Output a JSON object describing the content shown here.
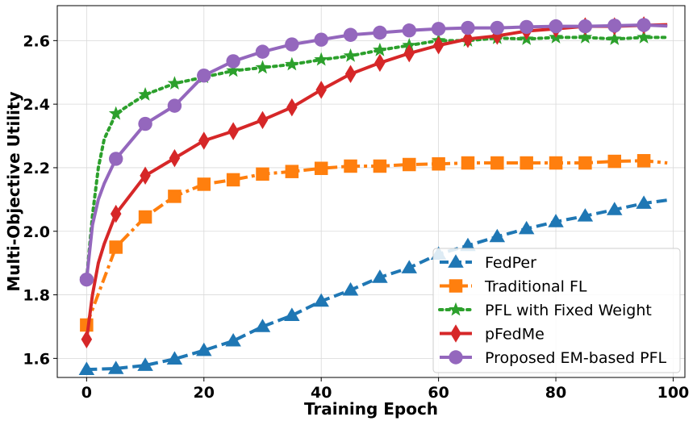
{
  "chart_data": {
    "type": "line",
    "title": "",
    "xlabel": "Training Epoch",
    "ylabel": "Multi-Objective Utility",
    "xlim": [
      -5,
      102
    ],
    "ylim": [
      1.54,
      2.71
    ],
    "xticks": [
      0,
      20,
      40,
      60,
      80,
      100
    ],
    "yticks": [
      1.6,
      1.8,
      2.0,
      2.2,
      2.4,
      2.6
    ],
    "xtick_labels": [
      "0",
      "20",
      "40",
      "60",
      "80",
      "100"
    ],
    "ytick_labels": [
      "1.6",
      "1.8",
      "2.0",
      "2.2",
      "2.4",
      "2.6"
    ],
    "grid": true,
    "legend_position": "lower-right",
    "series": [
      {
        "name": "FedPer",
        "color": "#1f77b4",
        "linestyle": "dashed",
        "marker": "triangle",
        "x": [
          0,
          5,
          10,
          15,
          20,
          25,
          30,
          35,
          40,
          45,
          50,
          55,
          60,
          65,
          70,
          75,
          80,
          85,
          90,
          95,
          99
        ],
        "y": [
          1.565,
          1.568,
          1.578,
          1.598,
          1.625,
          1.655,
          1.7,
          1.735,
          1.78,
          1.815,
          1.855,
          1.885,
          1.928,
          1.955,
          1.983,
          2.008,
          2.03,
          2.048,
          2.068,
          2.088,
          2.098
        ]
      },
      {
        "name": "Traditional FL",
        "color": "#ff7f0e",
        "linestyle": "dashdot",
        "marker": "square",
        "x": [
          0,
          5,
          10,
          15,
          20,
          25,
          30,
          35,
          40,
          45,
          50,
          55,
          60,
          65,
          70,
          75,
          80,
          85,
          90,
          95,
          99
        ],
        "y": [
          1.705,
          1.95,
          2.045,
          2.11,
          2.148,
          2.162,
          2.18,
          2.188,
          2.198,
          2.205,
          2.205,
          2.21,
          2.212,
          2.215,
          2.215,
          2.215,
          2.215,
          2.215,
          2.22,
          2.222,
          2.215
        ]
      },
      {
        "name": "PFL with Fixed Weight",
        "color": "#2ca02c",
        "linestyle": "dotted",
        "marker": "star",
        "x": [
          0,
          1,
          2,
          3,
          5,
          10,
          15,
          20,
          25,
          30,
          35,
          40,
          45,
          50,
          55,
          60,
          65,
          70,
          75,
          80,
          85,
          90,
          95,
          99
        ],
        "y": [
          1.85,
          2.05,
          2.2,
          2.29,
          2.37,
          2.43,
          2.465,
          2.485,
          2.505,
          2.515,
          2.525,
          2.54,
          2.552,
          2.57,
          2.585,
          2.6,
          2.6,
          2.608,
          2.605,
          2.61,
          2.61,
          2.605,
          2.61,
          2.61
        ]
      },
      {
        "name": "pFedMe",
        "color": "#d62728",
        "linestyle": "solid",
        "marker": "diamond",
        "x": [
          0,
          1,
          2,
          3,
          5,
          10,
          15,
          20,
          25,
          30,
          35,
          40,
          45,
          50,
          55,
          60,
          65,
          70,
          75,
          80,
          85,
          90,
          95,
          99
        ],
        "y": [
          1.66,
          1.8,
          1.9,
          1.96,
          2.055,
          2.175,
          2.23,
          2.285,
          2.315,
          2.35,
          2.39,
          2.445,
          2.495,
          2.53,
          2.56,
          2.585,
          2.605,
          2.615,
          2.63,
          2.637,
          2.645,
          2.645,
          2.648,
          2.65
        ]
      },
      {
        "name": "Proposed EM-based PFL",
        "color": "#9467bd",
        "linestyle": "solid",
        "marker": "circle",
        "x": [
          0,
          1,
          2,
          3,
          5,
          10,
          15,
          20,
          25,
          30,
          35,
          40,
          45,
          50,
          55,
          60,
          65,
          70,
          75,
          80,
          85,
          90,
          95,
          99
        ],
        "y": [
          1.848,
          2.02,
          2.1,
          2.15,
          2.228,
          2.338,
          2.395,
          2.49,
          2.535,
          2.565,
          2.588,
          2.603,
          2.618,
          2.625,
          2.632,
          2.637,
          2.64,
          2.64,
          2.643,
          2.645,
          2.645,
          2.647,
          2.649,
          2.646
        ]
      }
    ]
  }
}
